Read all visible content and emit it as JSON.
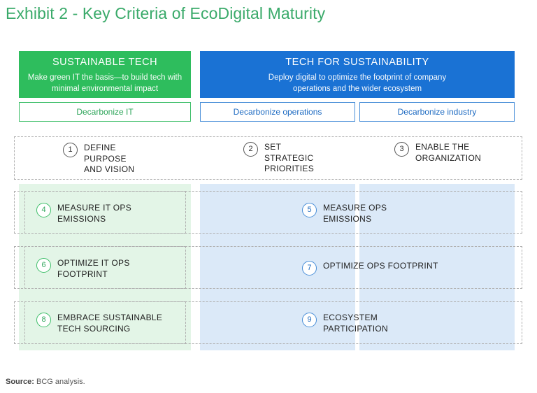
{
  "title": "Exhibit 2 - Key Criteria of EcoDigital Maturity",
  "columns": {
    "sustainable_tech": {
      "title": "SUSTAINABLE TECH",
      "description": "Make green IT the basis—to build tech with minimal environmental impact",
      "sub": "Decarbonize IT",
      "color": "#2ebd5d"
    },
    "tech_for_sustainability": {
      "title": "TECH FOR SUSTAINABILITY",
      "description": "Deploy digital to optimize the footprint of company operations and the wider ecosystem",
      "subs": [
        "Decarbonize operations",
        "Decarbonize industry"
      ],
      "color": "#1a72d4"
    }
  },
  "criteria": [
    {
      "number": "1",
      "label": "DEFINE\nPURPOSE\nAND VISION"
    },
    {
      "number": "2",
      "label": "SET\nSTRATEGIC\nPRIORITIES"
    },
    {
      "number": "3",
      "label": "ENABLE THE\nORGANIZATION"
    },
    {
      "number": "4",
      "label": "MEASURE IT OPS\nEMISSIONS"
    },
    {
      "number": "5",
      "label": "MEASURE OPS\nEMISSIONS"
    },
    {
      "number": "6",
      "label": "OPTIMIZE IT OPS\nFOOTPRINT"
    },
    {
      "number": "7",
      "label": "OPTIMIZE OPS FOOTPRINT"
    },
    {
      "number": "8",
      "label": "EMBRACE SUSTAINABLE\nTECH SOURCING"
    },
    {
      "number": "9",
      "label": "ECOSYSTEM\nPARTICIPATION"
    }
  ],
  "source": {
    "label": "Source:",
    "text": "BCG analysis."
  }
}
